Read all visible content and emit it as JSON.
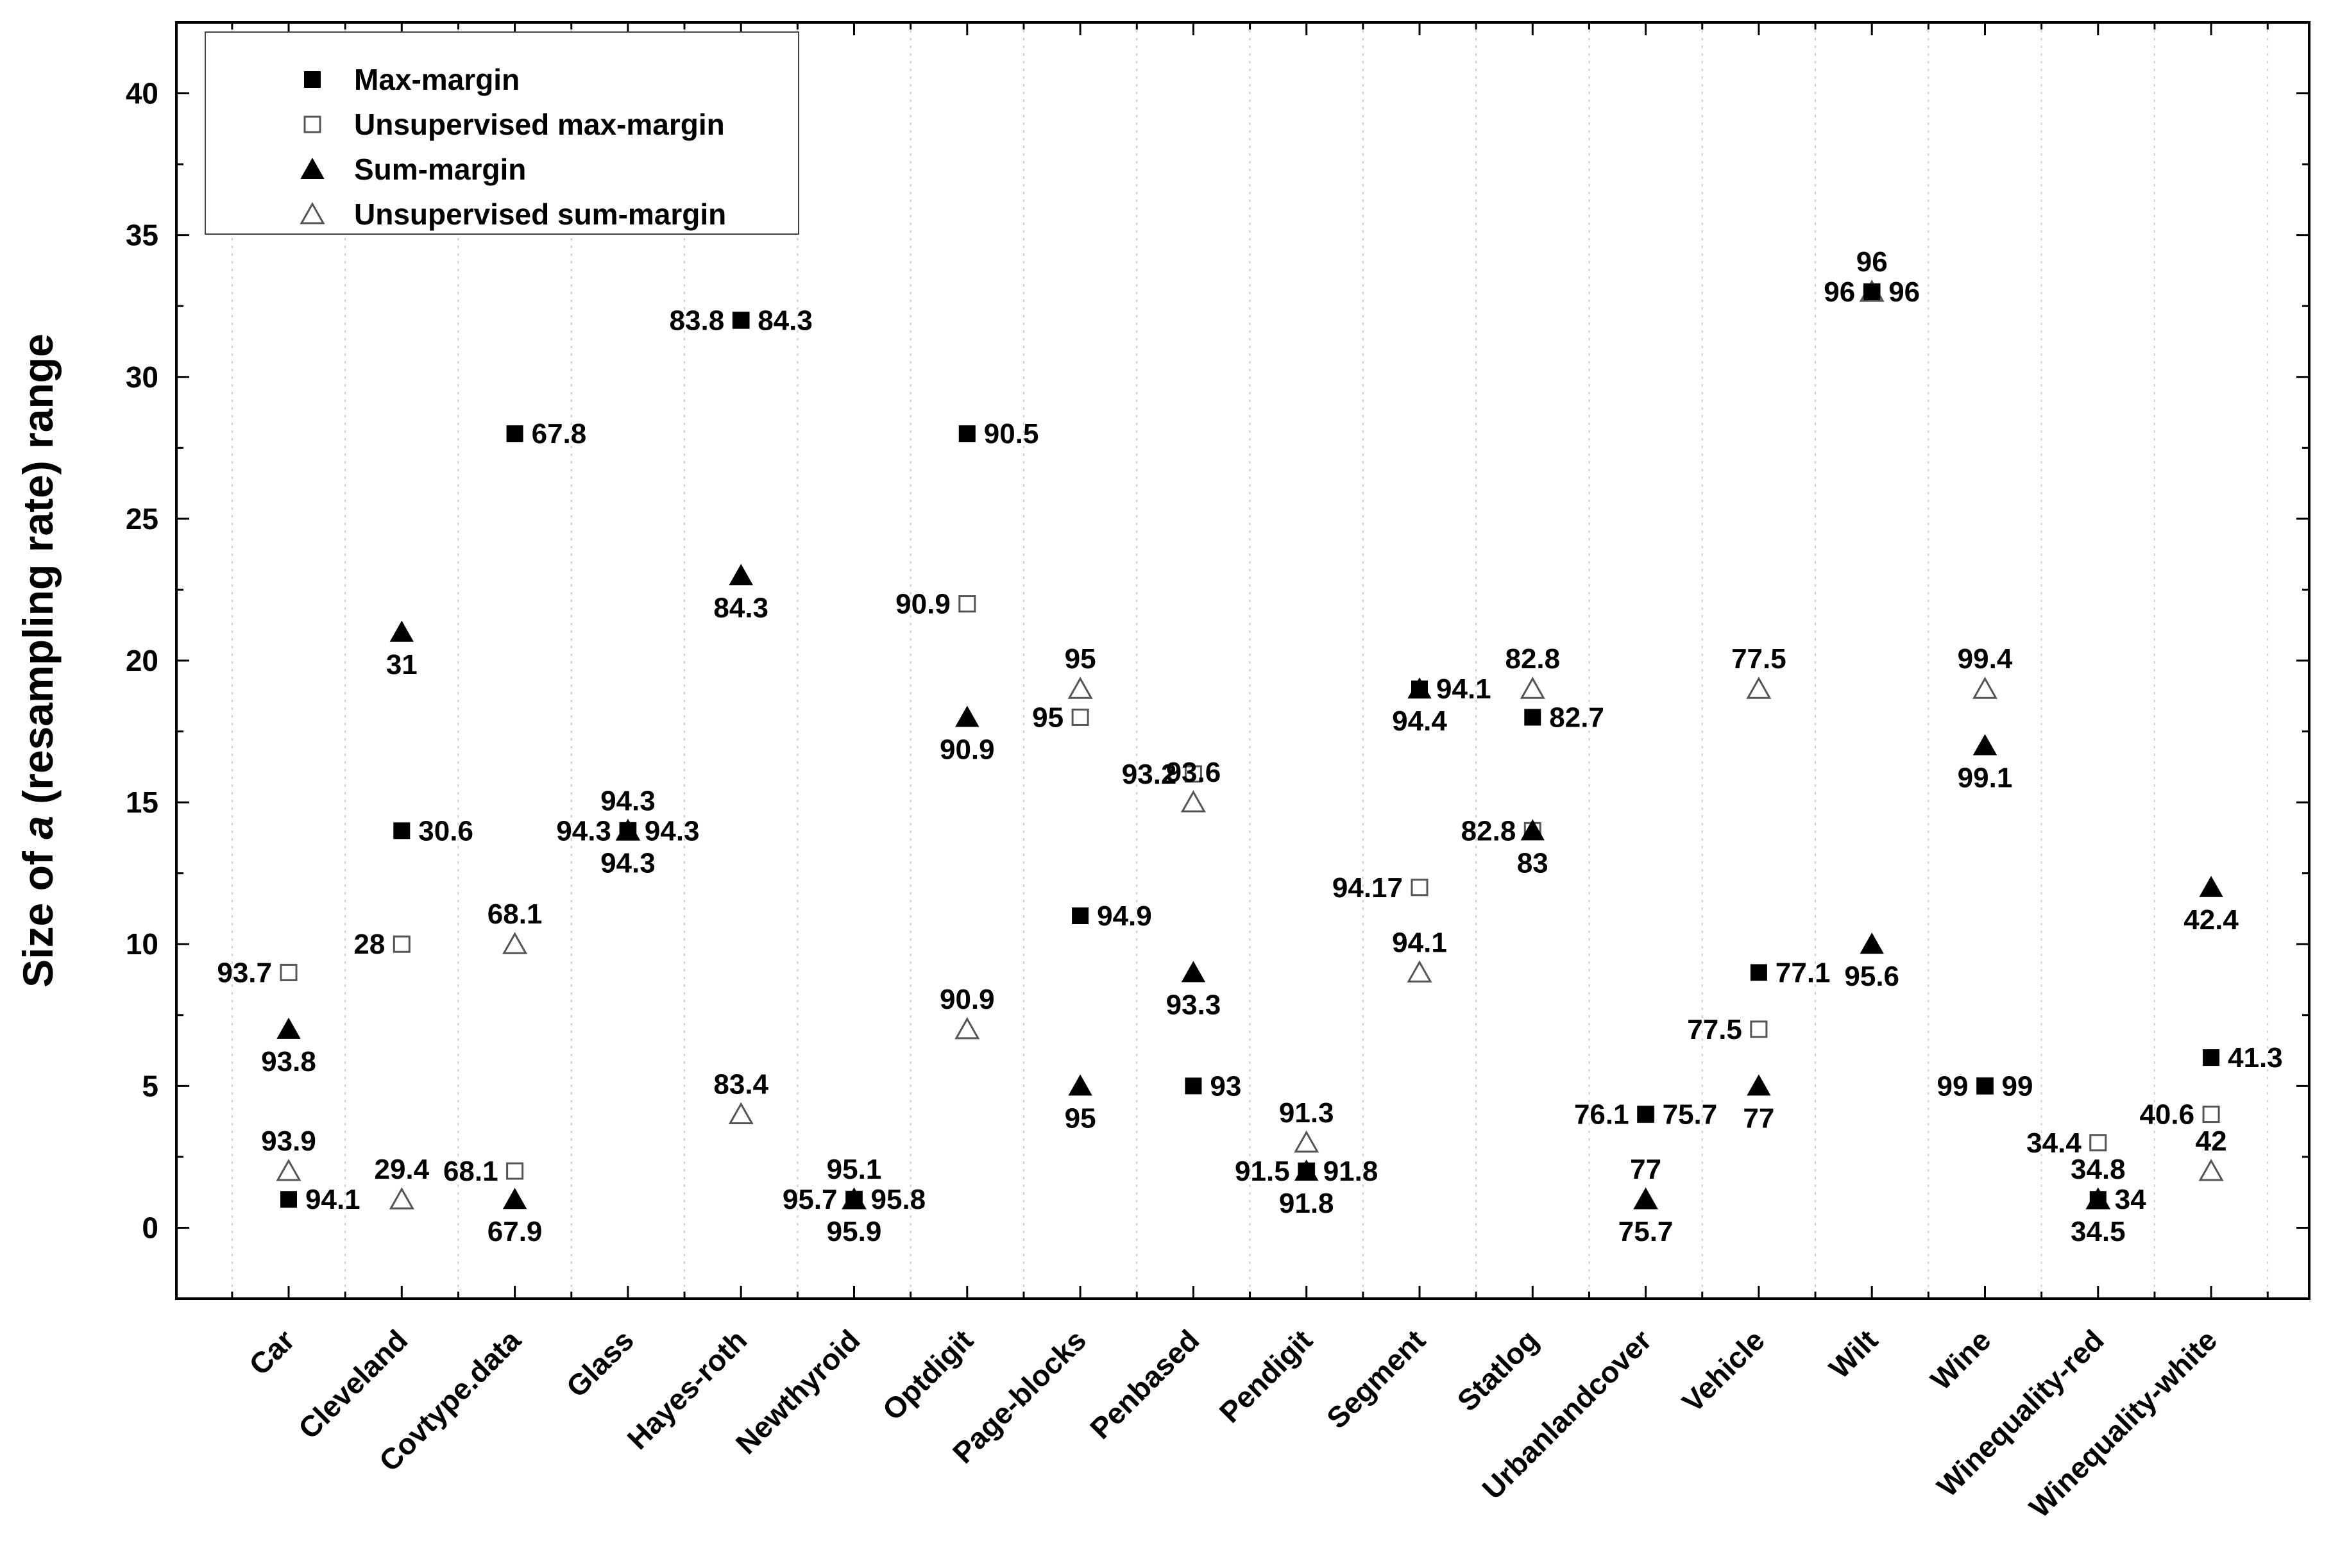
{
  "chart_data": {
    "type": "scatter",
    "title": "",
    "xlabel": "",
    "ylabel_parts": [
      "Size of ",
      "a",
      " (resampling rate) range"
    ],
    "ylim": [
      -2.5,
      42.5
    ],
    "yticks": [
      0,
      5,
      10,
      15,
      20,
      25,
      30,
      35,
      40
    ],
    "grid": "vertical dotted",
    "legend_position": "top-left",
    "categories": [
      "Car",
      "Cleveland",
      "Covtype.data",
      "Glass",
      "Hayes-roth",
      "Newthyroid",
      "Optdigit",
      "Page-blocks",
      "Penbased",
      "Pendigit",
      "Segment",
      "Statlog",
      "Urbanlandcover",
      "Vehicle",
      "Wilt",
      "Wine",
      "Winequality-red",
      "Winequality-white"
    ],
    "series": [
      {
        "name": "Max-margin",
        "marker": "filled-square",
        "points": [
          {
            "cat": "Car",
            "y": 1,
            "label": "94.1",
            "pos": "right"
          },
          {
            "cat": "Cleveland",
            "y": 14,
            "label": "30.6",
            "pos": "right"
          },
          {
            "cat": "Covtype.data",
            "y": 28,
            "label": "67.8",
            "pos": "right"
          },
          {
            "cat": "Glass",
            "y": 14,
            "label": "94.3",
            "pos": "right"
          },
          {
            "cat": "Hayes-roth",
            "y": 32,
            "label": "84.3",
            "pos": "right"
          },
          {
            "cat": "Newthyroid",
            "y": 1,
            "label": "95.8",
            "pos": "right"
          },
          {
            "cat": "Optdigit",
            "y": 28,
            "label": "90.5",
            "pos": "right"
          },
          {
            "cat": "Page-blocks",
            "y": 11,
            "label": "94.9",
            "pos": "right"
          },
          {
            "cat": "Penbased",
            "y": 5,
            "label": "93",
            "pos": "right"
          },
          {
            "cat": "Pendigit",
            "y": 2,
            "label": "91.8",
            "pos": "right"
          },
          {
            "cat": "Segment",
            "y": 19,
            "label": "94.1",
            "pos": "right"
          },
          {
            "cat": "Statlog",
            "y": 18,
            "label": "82.7",
            "pos": "right"
          },
          {
            "cat": "Urbanlandcover",
            "y": 4,
            "label": "75.7",
            "pos": "right"
          },
          {
            "cat": "Vehicle",
            "y": 9,
            "label": "77.1",
            "pos": "right"
          },
          {
            "cat": "Wilt",
            "y": 33,
            "label": "96",
            "pos": "right"
          },
          {
            "cat": "Wine",
            "y": 5,
            "label": "99",
            "pos": "right"
          },
          {
            "cat": "Winequality-red",
            "y": 1,
            "label": "34",
            "pos": "right"
          },
          {
            "cat": "Winequality-white",
            "y": 6,
            "label": "41.3",
            "pos": "right"
          }
        ]
      },
      {
        "name": "Unsupervised max-margin",
        "marker": "open-square",
        "points": [
          {
            "cat": "Car",
            "y": 9,
            "label": "93.7",
            "pos": "left"
          },
          {
            "cat": "Cleveland",
            "y": 10,
            "label": "28",
            "pos": "left"
          },
          {
            "cat": "Covtype.data",
            "y": 2,
            "label": "68.1",
            "pos": "left"
          },
          {
            "cat": "Glass",
            "y": 14,
            "label": "94.3",
            "pos": "left"
          },
          {
            "cat": "Hayes-roth",
            "y": 32,
            "label": "83.8",
            "pos": "left"
          },
          {
            "cat": "Newthyroid",
            "y": 1,
            "label": "95.7",
            "pos": "left"
          },
          {
            "cat": "Optdigit",
            "y": 22,
            "label": "90.9",
            "pos": "left"
          },
          {
            "cat": "Page-blocks",
            "y": 18,
            "label": "95",
            "pos": "left"
          },
          {
            "cat": "Penbased",
            "y": 16,
            "label": "93.2",
            "pos": "left"
          },
          {
            "cat": "Pendigit",
            "y": 2,
            "label": "91.5",
            "pos": "left"
          },
          {
            "cat": "Segment",
            "y": 12,
            "label": "94.17",
            "pos": "left"
          },
          {
            "cat": "Statlog",
            "y": 14,
            "label": "82.8",
            "pos": "left"
          },
          {
            "cat": "Urbanlandcover",
            "y": 4,
            "label": "76.1",
            "pos": "left"
          },
          {
            "cat": "Vehicle",
            "y": 7,
            "label": "77.5",
            "pos": "left"
          },
          {
            "cat": "Wilt",
            "y": 33,
            "label": "96",
            "pos": "left"
          },
          {
            "cat": "Wine",
            "y": 5,
            "label": "99",
            "pos": "left"
          },
          {
            "cat": "Winequality-red",
            "y": 3,
            "label": "34.4",
            "pos": "left"
          },
          {
            "cat": "Winequality-white",
            "y": 4,
            "label": "40.6",
            "pos": "left"
          }
        ]
      },
      {
        "name": "Sum-margin",
        "marker": "filled-triangle",
        "points": [
          {
            "cat": "Car",
            "y": 7,
            "label": "93.8",
            "pos": "below"
          },
          {
            "cat": "Cleveland",
            "y": 21,
            "label": "31",
            "pos": "below"
          },
          {
            "cat": "Covtype.data",
            "y": 1,
            "label": "67.9",
            "pos": "below"
          },
          {
            "cat": "Glass",
            "y": 14,
            "label": "94.3",
            "pos": "below"
          },
          {
            "cat": "Hayes-roth",
            "y": 23,
            "label": "84.3",
            "pos": "below"
          },
          {
            "cat": "Newthyroid",
            "y": 1,
            "label": "95.9",
            "pos": "below"
          },
          {
            "cat": "Optdigit",
            "y": 18,
            "label": "90.9",
            "pos": "below"
          },
          {
            "cat": "Page-blocks",
            "y": 5,
            "label": "95",
            "pos": "below"
          },
          {
            "cat": "Penbased",
            "y": 9,
            "label": "93.3",
            "pos": "below"
          },
          {
            "cat": "Pendigit",
            "y": 2,
            "label": "91.8",
            "pos": "below"
          },
          {
            "cat": "Segment",
            "y": 19,
            "label": "94.4",
            "pos": "below"
          },
          {
            "cat": "Statlog",
            "y": 14,
            "label": "83",
            "pos": "below"
          },
          {
            "cat": "Urbanlandcover",
            "y": 1,
            "label": "75.7",
            "pos": "below"
          },
          {
            "cat": "Vehicle",
            "y": 5,
            "label": "77",
            "pos": "below"
          },
          {
            "cat": "Wilt",
            "y": 10,
            "label": "95.6",
            "pos": "below"
          },
          {
            "cat": "Wine",
            "y": 17,
            "label": "99.1",
            "pos": "below"
          },
          {
            "cat": "Winequality-red",
            "y": 1,
            "label": "34.5",
            "pos": "below"
          },
          {
            "cat": "Winequality-white",
            "y": 12,
            "label": "42.4",
            "pos": "below"
          }
        ]
      },
      {
        "name": "Unsupervised sum-margin",
        "marker": "open-triangle",
        "points": [
          {
            "cat": "Car",
            "y": 2,
            "label": "93.9",
            "pos": "above"
          },
          {
            "cat": "Cleveland",
            "y": 1,
            "label": "29.4",
            "pos": "above"
          },
          {
            "cat": "Covtype.data",
            "y": 10,
            "label": "68.1",
            "pos": "above"
          },
          {
            "cat": "Glass",
            "y": 14,
            "label": "94.3",
            "pos": "above"
          },
          {
            "cat": "Hayes-roth",
            "y": 4,
            "label": "83.4",
            "pos": "above"
          },
          {
            "cat": "Newthyroid",
            "y": 1,
            "label": "95.1",
            "pos": "above"
          },
          {
            "cat": "Optdigit",
            "y": 7,
            "label": "90.9",
            "pos": "above"
          },
          {
            "cat": "Page-blocks",
            "y": 19,
            "label": "95",
            "pos": "above"
          },
          {
            "cat": "Penbased",
            "y": 15,
            "label": "93.6",
            "pos": "above"
          },
          {
            "cat": "Pendigit",
            "y": 3,
            "label": "91.3",
            "pos": "above"
          },
          {
            "cat": "Segment",
            "y": 9,
            "label": "94.1",
            "pos": "above"
          },
          {
            "cat": "Statlog",
            "y": 19,
            "label": "82.8",
            "pos": "above"
          },
          {
            "cat": "Urbanlandcover",
            "y": 1,
            "label": "77",
            "pos": "above"
          },
          {
            "cat": "Vehicle",
            "y": 19,
            "label": "77.5",
            "pos": "above"
          },
          {
            "cat": "Wilt",
            "y": 33,
            "label": "96",
            "pos": "above"
          },
          {
            "cat": "Wine",
            "y": 19,
            "label": "99.4",
            "pos": "above"
          },
          {
            "cat": "Winequality-red",
            "y": 1,
            "label": "34.8",
            "pos": "above"
          },
          {
            "cat": "Winequality-white",
            "y": 2,
            "label": "42",
            "pos": "above"
          }
        ]
      }
    ]
  }
}
